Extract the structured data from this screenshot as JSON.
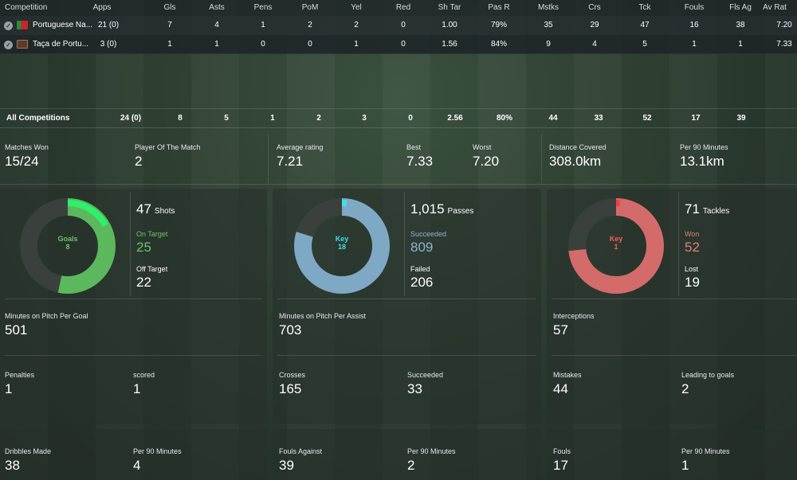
{
  "table": {
    "headers": {
      "competition": "Competition",
      "apps": "Apps",
      "gls": "Gls",
      "asts": "Asts",
      "pens": "Pens",
      "pom": "PoM",
      "yel": "Yel",
      "red": "Red",
      "shtar": "Sh Tar",
      "pasr": "Pas R",
      "mstks": "Mstks",
      "crs": "Crs",
      "tck": "Tck",
      "fouls": "Fouls",
      "flsag": "Fls Ag",
      "avrat": "Av Rat"
    },
    "rows": [
      {
        "competition": "Portuguese Na...",
        "apps": "21 (0)",
        "gls": "7",
        "asts": "4",
        "pens": "1",
        "pom": "2",
        "yel": "2",
        "red": "0",
        "shtar": "1.00",
        "pasr": "79%",
        "mstks": "35",
        "crs": "29",
        "tck": "47",
        "fouls": "16",
        "flsag": "38",
        "avrat": "7.20"
      },
      {
        "competition": "Taça de Portu...",
        "apps": "3 (0)",
        "gls": "1",
        "asts": "1",
        "pens": "0",
        "pom": "0",
        "yel": "1",
        "red": "0",
        "shtar": "1.56",
        "pasr": "84%",
        "mstks": "9",
        "crs": "4",
        "tck": "5",
        "fouls": "1",
        "flsag": "1",
        "avrat": "7.33"
      }
    ],
    "totals": {
      "competition": "All Competitions",
      "apps": "24 (0)",
      "gls": "8",
      "asts": "5",
      "pens": "1",
      "pom": "2",
      "yel": "3",
      "red": "0",
      "shtar": "2.56",
      "pasr": "80%",
      "mstks": "44",
      "crs": "33",
      "tck": "52",
      "fouls": "17",
      "flsag": "39"
    }
  },
  "summary": {
    "matches_won_label": "Matches Won",
    "matches_won": "15/24",
    "potm_label": "Player Of The Match",
    "potm": "2",
    "avg_rating_label": "Average rating",
    "avg_rating": "7.21",
    "best_label": "Best",
    "best": "7.33",
    "worst_label": "Worst",
    "worst": "7.20",
    "distance_label": "Distance Covered",
    "distance": "308.0km",
    "per90_label": "Per 90 Minutes",
    "per90": "13.1km"
  },
  "shots": {
    "donut_label": "Goals",
    "donut_value": "8",
    "goals_fraction": 0.17,
    "donut_color": "#5cb85c",
    "highlight_color": "#2ef06a",
    "total": "47",
    "word": "Shots",
    "on_target_label": "On Target",
    "on_target": "25",
    "on_fraction": 0.532,
    "off_target_label": "Off Target",
    "off_target": "22",
    "mpg_label": "Minutes on Pitch Per Goal",
    "mpg": "501",
    "pen_label": "Penalties",
    "pen": "1",
    "scored_label": "scored",
    "scored": "1",
    "dribbles_label": "Dribbles Made",
    "dribbles": "38",
    "dribbles90_label": "Per 90 Minutes",
    "dribbles90": "4"
  },
  "passes": {
    "donut_label": "Key",
    "donut_value": "18",
    "key_fraction": 0.0178,
    "donut_color": "#7fa8c4",
    "highlight_color": "#3de0e8",
    "total": "1,015",
    "word": "Passes",
    "succ_label": "Succeeded",
    "succ": "809",
    "succ_fraction": 0.797,
    "failed_label": "Failed",
    "failed": "206",
    "mpa_label": "Minutes on Pitch Per Assist",
    "mpa": "703",
    "crosses_label": "Crosses",
    "crosses": "165",
    "csucc_label": "Succeeded",
    "csucc": "33",
    "fa_label": "Fouls Against",
    "fa": "39",
    "fa90_label": "Per 90 Minutes",
    "fa90": "2"
  },
  "tackles": {
    "donut_label": "Key",
    "donut_value": "1",
    "key_fraction": 0.014,
    "donut_color": "#d36b6b",
    "highlight_color": "#ff3c3c",
    "total": "71",
    "word": "Tackles",
    "won_label": "Won",
    "won": "52",
    "won_fraction": 0.732,
    "lost_label": "Lost",
    "lost": "19",
    "int_label": "Interceptions",
    "int": "57",
    "mist_label": "Mistakes",
    "mist": "44",
    "ltg_label": "Leading to goals",
    "ltg": "2",
    "fouls_label": "Fouls",
    "fouls": "17",
    "fouls90_label": "Per 90 Minutes",
    "fouls90": "1"
  },
  "colors": {
    "green": "#6cc26c",
    "blue": "#8db3cf",
    "red": "#e07f7f",
    "track": "#3a403c"
  }
}
